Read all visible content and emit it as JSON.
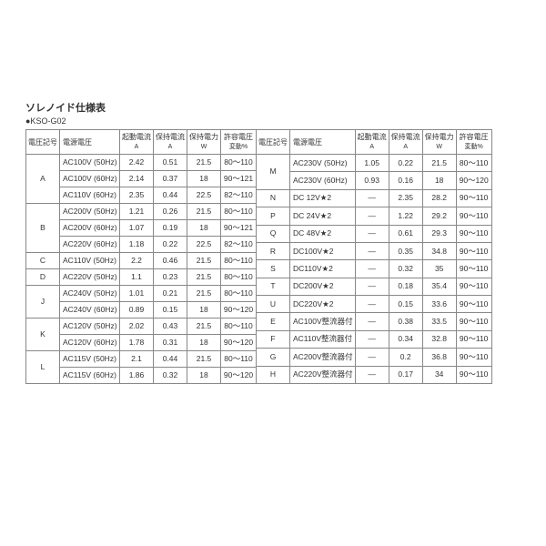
{
  "title": "ソレノイド仕様表",
  "subtitle": "●KSO-G02",
  "headers": {
    "h1": "電圧記号",
    "h2": "電源電圧",
    "h3a": "起動電流",
    "h3b": "A",
    "h4a": "保持電流",
    "h4b": "A",
    "h5a": "保持電力",
    "h5b": "W",
    "h6a": "許容電圧",
    "h6b": "変動%"
  },
  "left": [
    {
      "sym": "A",
      "span": 3,
      "v": "AC100V (50Hz)",
      "a": "2.42",
      "b": "0.51",
      "c": "21.5",
      "d": "80～110"
    },
    {
      "v": "AC100V (60Hz)",
      "a": "2.14",
      "b": "0.37",
      "c": "18",
      "d": "90～121"
    },
    {
      "v": "AC110V (60Hz)",
      "a": "2.35",
      "b": "0.44",
      "c": "22.5",
      "d": "82～110"
    },
    {
      "sym": "B",
      "span": 3,
      "v": "AC200V (50Hz)",
      "a": "1.21",
      "b": "0.26",
      "c": "21.5",
      "d": "80～110"
    },
    {
      "v": "AC200V (60Hz)",
      "a": "1.07",
      "b": "0.19",
      "c": "18",
      "d": "90～121"
    },
    {
      "v": "AC220V (60Hz)",
      "a": "1.18",
      "b": "0.22",
      "c": "22.5",
      "d": "82～110"
    },
    {
      "sym": "C",
      "span": 1,
      "v": "AC110V (50Hz)",
      "a": "2.2",
      "b": "0.46",
      "c": "21.5",
      "d": "80～110"
    },
    {
      "sym": "D",
      "span": 1,
      "v": "AC220V (50Hz)",
      "a": "1.1",
      "b": "0.23",
      "c": "21.5",
      "d": "80～110"
    },
    {
      "sym": "J",
      "span": 2,
      "v": "AC240V (50Hz)",
      "a": "1.01",
      "b": "0.21",
      "c": "21.5",
      "d": "80～110"
    },
    {
      "v": "AC240V (60Hz)",
      "a": "0.89",
      "b": "0.15",
      "c": "18",
      "d": "90～120"
    },
    {
      "sym": "K",
      "span": 2,
      "v": "AC120V (50Hz)",
      "a": "2.02",
      "b": "0.43",
      "c": "21.5",
      "d": "80～110"
    },
    {
      "v": "AC120V (60Hz)",
      "a": "1.78",
      "b": "0.31",
      "c": "18",
      "d": "90～120"
    },
    {
      "sym": "L",
      "span": 2,
      "v": "AC115V (50Hz)",
      "a": "2.1",
      "b": "0.44",
      "c": "21.5",
      "d": "80～110"
    },
    {
      "v": "AC115V (60Hz)",
      "a": "1.86",
      "b": "0.32",
      "c": "18",
      "d": "90～120"
    }
  ],
  "right": [
    {
      "sym": "M",
      "span": 2,
      "v": "AC230V (50Hz)",
      "a": "1.05",
      "b": "0.22",
      "c": "21.5",
      "d": "80～110"
    },
    {
      "v": "AC230V (60Hz)",
      "a": "0.93",
      "b": "0.16",
      "c": "18",
      "d": "90～120"
    },
    {
      "sym": "N",
      "span": 1,
      "v": "DC 12V★2",
      "a": "―",
      "b": "2.35",
      "c": "28.2",
      "d": "90～110"
    },
    {
      "sym": "P",
      "span": 1,
      "v": "DC 24V★2",
      "a": "―",
      "b": "1.22",
      "c": "29.2",
      "d": "90～110"
    },
    {
      "sym": "Q",
      "span": 1,
      "v": "DC 48V★2",
      "a": "―",
      "b": "0.61",
      "c": "29.3",
      "d": "90～110"
    },
    {
      "sym": "R",
      "span": 1,
      "v": "DC100V★2",
      "a": "―",
      "b": "0.35",
      "c": "34.8",
      "d": "90～110"
    },
    {
      "sym": "S",
      "span": 1,
      "v": "DC110V★2",
      "a": "―",
      "b": "0.32",
      "c": "35",
      "d": "90～110"
    },
    {
      "sym": "T",
      "span": 1,
      "v": "DC200V★2",
      "a": "―",
      "b": "0.18",
      "c": "35.4",
      "d": "90～110"
    },
    {
      "sym": "U",
      "span": 1,
      "v": "DC220V★2",
      "a": "―",
      "b": "0.15",
      "c": "33.6",
      "d": "90～110"
    },
    {
      "sym": "E",
      "span": 1,
      "v": "AC100V整流器付",
      "a": "―",
      "b": "0.38",
      "c": "33.5",
      "d": "90～110"
    },
    {
      "sym": "F",
      "span": 1,
      "v": "AC110V整流器付",
      "a": "―",
      "b": "0.34",
      "c": "32.8",
      "d": "90～110"
    },
    {
      "sym": "G",
      "span": 1,
      "v": "AC200V整流器付",
      "a": "―",
      "b": "0.2",
      "c": "36.8",
      "d": "90～110"
    },
    {
      "sym": "H",
      "span": 1,
      "v": "AC220V整流器付",
      "a": "―",
      "b": "0.17",
      "c": "34",
      "d": "90～110"
    }
  ]
}
